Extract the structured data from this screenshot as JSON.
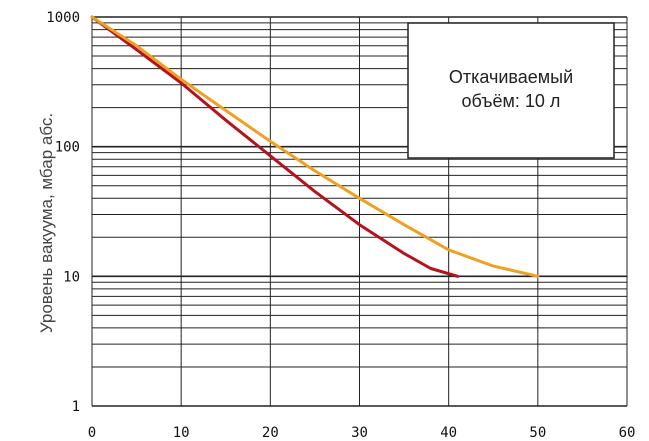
{
  "chart_data": {
    "type": "line",
    "title": "",
    "xlabel": "",
    "ylabel": "Уровень вакуума, мбар абс.",
    "annotation": [
      "Откачиваемый",
      "объём: 10 л"
    ],
    "x_scale": "linear",
    "y_scale": "log",
    "xlim": [
      0,
      60
    ],
    "ylim": [
      1,
      1000
    ],
    "x_ticks": [
      "0",
      "10",
      "20",
      "30",
      "40",
      "50",
      "60"
    ],
    "y_ticks": [
      "1",
      "10",
      "100",
      "1000"
    ],
    "grid": true,
    "colors": {
      "grid": "#222222",
      "series1": "#b5121b",
      "series2": "#f0a020"
    },
    "series": [
      {
        "color": "#b5121b",
        "x": [
          0,
          5,
          10,
          15,
          20,
          25,
          30,
          35,
          38,
          41
        ],
        "y": [
          1000,
          560,
          310,
          160,
          85,
          45,
          25,
          15,
          11.5,
          10
        ]
      },
      {
        "color": "#f0a020",
        "x": [
          0,
          5,
          10,
          15,
          20,
          25,
          30,
          35,
          40,
          45,
          50
        ],
        "y": [
          1000,
          600,
          330,
          190,
          110,
          65,
          40,
          25,
          16,
          12,
          10
        ]
      }
    ]
  }
}
